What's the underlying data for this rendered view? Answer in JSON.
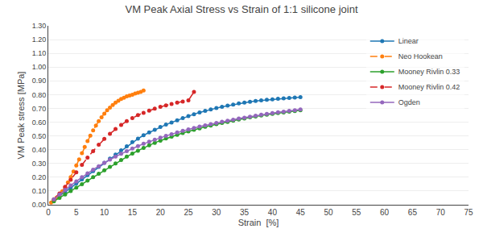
{
  "chart_data": {
    "type": "line",
    "title": "VM Peak Axial Stress vs Strain of 1:1 silicone joint",
    "xlabel": "Strain  [%]",
    "ylabel": "VM Peak stress [MPa]",
    "xlim": [
      0,
      75
    ],
    "ylim": [
      0.0,
      1.3
    ],
    "xticks": [
      0,
      5,
      10,
      15,
      20,
      25,
      30,
      35,
      40,
      45,
      50,
      55,
      60,
      65,
      70,
      75
    ],
    "yticks": [
      {
        "value": 0.0,
        "label": "0.00"
      },
      {
        "value": 0.1,
        "label": "0.10"
      },
      {
        "value": 0.2,
        "label": "0.20"
      },
      {
        "value": 0.3,
        "label": "0.30"
      },
      {
        "value": 0.4,
        "label": "0.40"
      },
      {
        "value": 0.5,
        "label": "0.50"
      },
      {
        "value": 0.6,
        "label": "0.60"
      },
      {
        "value": 0.7,
        "label": "0.70"
      },
      {
        "value": 0.8,
        "label": "0.80"
      },
      {
        "value": 0.9,
        "label": "0.90"
      },
      {
        "value": 1.0,
        "label": "1.00"
      },
      {
        "value": 1.1,
        "label": "1.10"
      },
      {
        "value": 1.2,
        "label": "1.20"
      },
      {
        "value": 1.3,
        "label": "1.30"
      }
    ],
    "grid": "y",
    "legend": "upper right",
    "series": [
      {
        "name": "Linear",
        "marker": "circle",
        "line_style": "solid",
        "x": [
          1,
          2,
          3,
          4,
          5,
          6,
          7,
          8,
          9,
          10,
          11,
          12,
          13,
          14,
          15,
          16,
          17,
          18,
          19,
          20,
          21,
          22,
          23,
          24,
          25,
          26,
          27,
          28,
          29,
          30,
          31,
          32,
          33,
          34,
          35,
          36,
          37,
          38,
          39,
          40,
          41,
          42,
          43,
          44,
          45
        ],
        "values": [
          0.035,
          0.065,
          0.095,
          0.125,
          0.155,
          0.185,
          0.215,
          0.245,
          0.275,
          0.305,
          0.335,
          0.365,
          0.395,
          0.425,
          0.455,
          0.48,
          0.505,
          0.525,
          0.545,
          0.565,
          0.582,
          0.598,
          0.614,
          0.63,
          0.644,
          0.658,
          0.67,
          0.682,
          0.692,
          0.702,
          0.712,
          0.72,
          0.728,
          0.736,
          0.742,
          0.748,
          0.754,
          0.758,
          0.762,
          0.766,
          0.77,
          0.773,
          0.776,
          0.779,
          0.782
        ]
      },
      {
        "name": "Neo Hookean",
        "marker": "circle",
        "line_style": "dashed",
        "x": [
          0.5,
          1,
          1.5,
          2,
          2.5,
          3,
          3.5,
          4,
          4.5,
          5,
          5.5,
          6,
          6.5,
          7,
          7.5,
          8,
          8.5,
          9,
          9.5,
          10,
          10.5,
          11,
          11.5,
          12,
          12.5,
          13,
          13.5,
          14,
          14.5,
          15,
          15.5,
          16,
          16.5,
          17
        ],
        "values": [
          0.016,
          0.032,
          0.052,
          0.072,
          0.098,
          0.128,
          0.162,
          0.2,
          0.242,
          0.285,
          0.33,
          0.375,
          0.42,
          0.462,
          0.502,
          0.54,
          0.576,
          0.608,
          0.636,
          0.662,
          0.686,
          0.706,
          0.724,
          0.742,
          0.756,
          0.768,
          0.778,
          0.787,
          0.793,
          0.8,
          0.808,
          0.814,
          0.82,
          0.83
        ]
      },
      {
        "name": "Mooney Rivlin 0.33",
        "marker": "circle",
        "line_style": "solid",
        "x": [
          1,
          2,
          3,
          4,
          5,
          6,
          7,
          8,
          9,
          10,
          11,
          12,
          13,
          14,
          15,
          16,
          17,
          18,
          19,
          20,
          21,
          22,
          23,
          24,
          25,
          26,
          27,
          28,
          29,
          30,
          31,
          32,
          33,
          34,
          35,
          36,
          37,
          38,
          39,
          40,
          41,
          42,
          43,
          44,
          45
        ],
        "values": [
          0.025,
          0.05,
          0.075,
          0.1,
          0.125,
          0.15,
          0.175,
          0.2,
          0.225,
          0.25,
          0.275,
          0.3,
          0.325,
          0.35,
          0.372,
          0.393,
          0.413,
          0.432,
          0.45,
          0.466,
          0.481,
          0.495,
          0.508,
          0.521,
          0.533,
          0.545,
          0.555,
          0.566,
          0.575,
          0.585,
          0.594,
          0.602,
          0.611,
          0.619,
          0.627,
          0.635,
          0.641,
          0.648,
          0.654,
          0.66,
          0.666,
          0.671,
          0.676,
          0.681,
          0.686
        ]
      },
      {
        "name": "Mooney Rivlin 0.42",
        "marker": "circle",
        "line_style": "dashed",
        "x": [
          1,
          2,
          3,
          4,
          5,
          6,
          7,
          8,
          9,
          10,
          11,
          12,
          13,
          14,
          15,
          16,
          17,
          18,
          19,
          20,
          21,
          22,
          23,
          24,
          25,
          26
        ],
        "values": [
          0.04,
          0.082,
          0.13,
          0.182,
          0.236,
          0.29,
          0.342,
          0.39,
          0.436,
          0.478,
          0.516,
          0.55,
          0.58,
          0.607,
          0.63,
          0.651,
          0.668,
          0.684,
          0.698,
          0.711,
          0.722,
          0.732,
          0.742,
          0.75,
          0.758,
          0.82
        ]
      },
      {
        "name": "Ogden",
        "marker": "circle",
        "line_style": "solid",
        "x": [
          1,
          2,
          3,
          4,
          5,
          6,
          7,
          8,
          9,
          10,
          11,
          12,
          13,
          14,
          15,
          16,
          17,
          18,
          19,
          20,
          21,
          22,
          23,
          24,
          25,
          26,
          27,
          28,
          29,
          30,
          31,
          32,
          33,
          34,
          35,
          36,
          37,
          38,
          39,
          40,
          41,
          42,
          43,
          44,
          45
        ],
        "values": [
          0.04,
          0.075,
          0.108,
          0.14,
          0.17,
          0.2,
          0.228,
          0.255,
          0.28,
          0.305,
          0.328,
          0.35,
          0.37,
          0.39,
          0.408,
          0.426,
          0.443,
          0.458,
          0.473,
          0.487,
          0.5,
          0.513,
          0.525,
          0.537,
          0.548,
          0.558,
          0.568,
          0.577,
          0.586,
          0.595,
          0.603,
          0.611,
          0.618,
          0.626,
          0.633,
          0.64,
          0.647,
          0.654,
          0.66,
          0.666,
          0.672,
          0.677,
          0.682,
          0.687,
          0.692
        ]
      }
    ]
  }
}
